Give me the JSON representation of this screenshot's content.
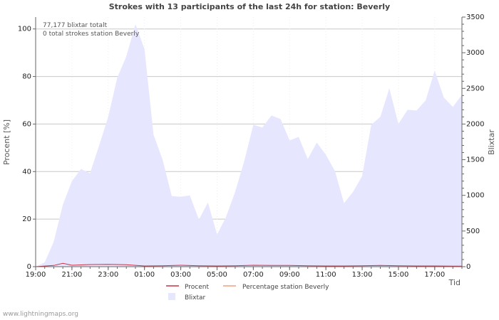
{
  "chart_data": {
    "type": "area",
    "title": "Strokes with 13 participants of the last 24h for station: Beverly",
    "xlabel": "Tid",
    "ylabel_left": "Procent   [%]",
    "ylabel_right": "Blixtar",
    "ylim_left": [
      0,
      105
    ],
    "ylim_right": [
      0,
      3500
    ],
    "y_ticks_left": [
      0,
      20,
      40,
      60,
      80,
      100
    ],
    "y_ticks_right": [
      0,
      500,
      1000,
      1500,
      2000,
      2500,
      3000,
      3500
    ],
    "x_range_hours": [
      0,
      23.5
    ],
    "x_ticks": [
      {
        "label": "19:00",
        "hour": 0
      },
      {
        "label": "21:00",
        "hour": 2
      },
      {
        "label": "23:00",
        "hour": 4
      },
      {
        "label": "01:00",
        "hour": 6
      },
      {
        "label": "03:00",
        "hour": 8
      },
      {
        "label": "05:00",
        "hour": 10
      },
      {
        "label": "07:00",
        "hour": 12
      },
      {
        "label": "09:00",
        "hour": 14
      },
      {
        "label": "11:00",
        "hour": 16
      },
      {
        "label": "13:00",
        "hour": 18
      },
      {
        "label": "15:00",
        "hour": 20
      },
      {
        "label": "17:00",
        "hour": 22
      }
    ],
    "annotations": [
      "77,177 blixtar totalt",
      "0 total strokes station Beverly"
    ],
    "series": [
      {
        "name": "Blixtar",
        "axis": "right",
        "style": "area",
        "color": "#e6e6ff",
        "x": [
          0,
          0.5,
          1,
          1.5,
          2,
          2.5,
          3,
          3.5,
          4,
          4.5,
          5,
          5.5,
          6,
          6.5,
          7,
          7.5,
          8,
          8.5,
          9,
          9.5,
          10,
          10.5,
          11,
          11.5,
          12,
          12.5,
          13,
          13.5,
          14,
          14.5,
          15,
          15.5,
          16,
          16.5,
          17,
          17.5,
          18,
          18.5,
          19,
          19.5,
          20,
          20.5,
          21,
          21.5,
          22,
          22.5,
          23,
          23.5
        ],
        "values": [
          0,
          60,
          350,
          870,
          1200,
          1370,
          1310,
          1700,
          2100,
          2650,
          2950,
          3400,
          3050,
          1850,
          1500,
          990,
          980,
          1000,
          660,
          900,
          450,
          700,
          1050,
          1480,
          1990,
          1950,
          2120,
          2070,
          1770,
          1820,
          1510,
          1740,
          1570,
          1340,
          890,
          1050,
          1270,
          1990,
          2100,
          2500,
          2000,
          2200,
          2190,
          2330,
          2750,
          2370,
          2240,
          2410
        ]
      },
      {
        "name": "Procent",
        "axis": "left",
        "style": "line",
        "color": "#cc3344",
        "x": [
          0,
          1,
          1.5,
          2,
          3,
          4,
          4.5,
          5,
          6,
          7,
          8,
          9,
          10,
          11,
          12,
          13,
          14,
          15,
          16,
          17,
          18,
          19,
          20,
          21,
          22,
          23,
          23.5
        ],
        "values": [
          0,
          0.5,
          1.4,
          0.6,
          0.9,
          1.0,
          0.9,
          0.8,
          0.3,
          0.4,
          0.6,
          0.4,
          0.3,
          0.4,
          0.6,
          0.5,
          0.5,
          0.4,
          0.3,
          0.3,
          0.4,
          0.5,
          0.4,
          0.3,
          0.3,
          0.2,
          0.2
        ]
      },
      {
        "name": "Percentage station Beverly",
        "axis": "left",
        "style": "line",
        "color": "#f0a080",
        "x": [
          0,
          23.5
        ],
        "values": [
          0,
          0
        ]
      }
    ],
    "legend": {
      "placement": "bottom",
      "entries": [
        {
          "label": "Procent",
          "color": "#cc3344",
          "kind": "line"
        },
        {
          "label": "Percentage station Beverly",
          "color": "#f0a080",
          "kind": "line"
        },
        {
          "label": "Blixtar",
          "color": "#e6e6ff",
          "kind": "box"
        }
      ]
    }
  },
  "watermark": "www.lightningmaps.org"
}
